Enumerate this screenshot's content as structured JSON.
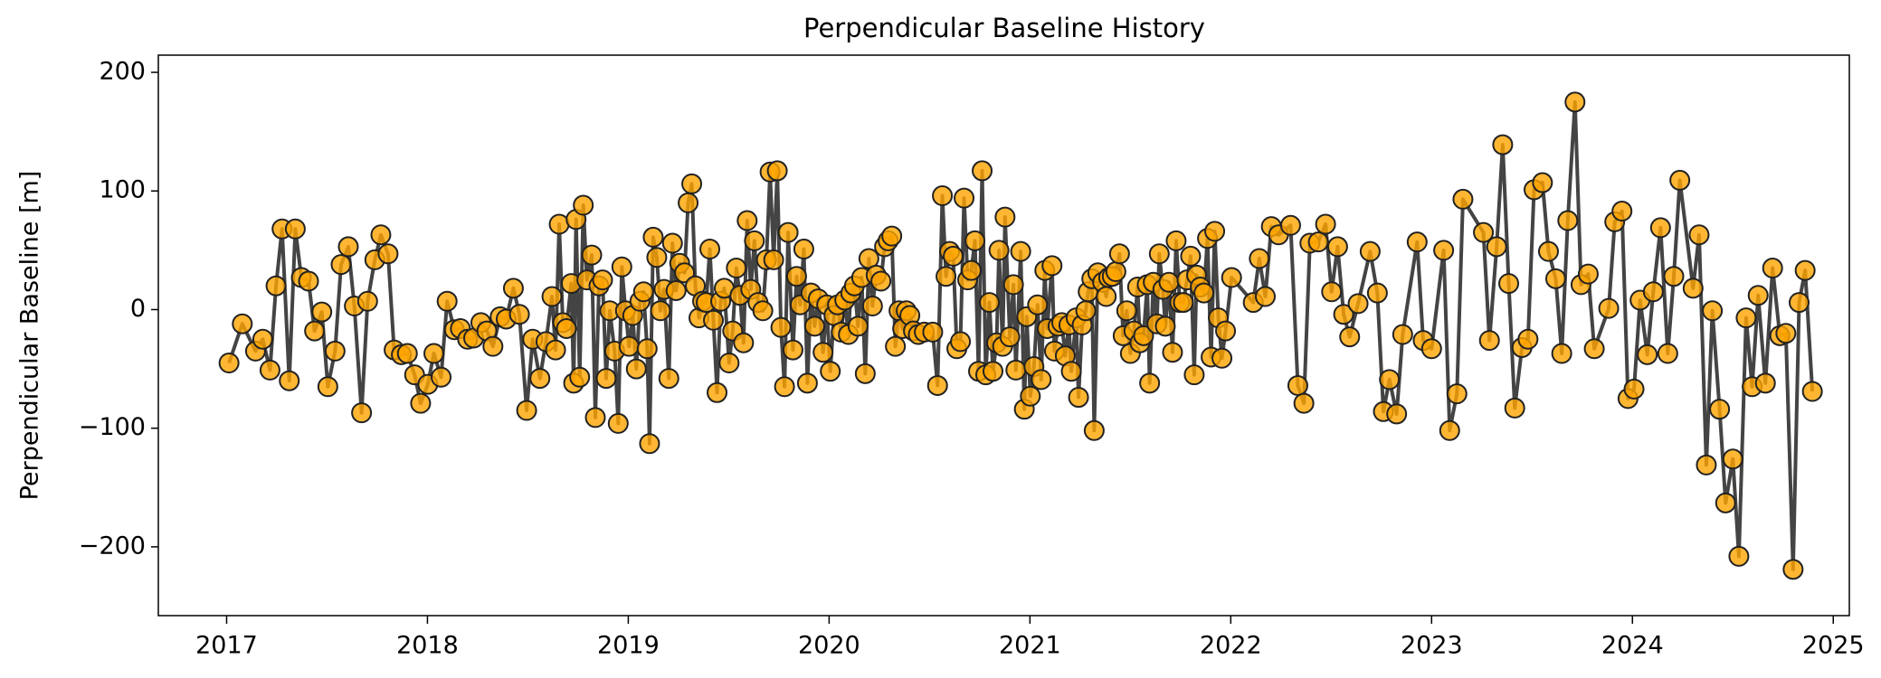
{
  "chart_data": {
    "type": "line",
    "title": "Perpendicular Baseline History",
    "y_label": "Perpendicular Baseline [m]",
    "x": [
      2017.012,
      2017.078,
      2017.144,
      2017.18,
      2017.216,
      2017.246,
      2017.276,
      2017.312,
      2017.342,
      2017.372,
      2017.408,
      2017.438,
      2017.474,
      2017.504,
      2017.54,
      2017.57,
      2017.606,
      2017.636,
      2017.672,
      2017.702,
      2017.738,
      2017.768,
      2017.804,
      2017.834,
      2017.87,
      2017.9,
      2017.936,
      2017.966,
      2018.002,
      2018.032,
      2018.068,
      2018.098,
      2018.134,
      2018.164,
      2018.2,
      2018.23,
      2018.266,
      2018.296,
      2018.326,
      2018.362,
      2018.392,
      2018.428,
      2018.458,
      2018.494,
      2018.524,
      2018.56,
      2018.59,
      2018.62,
      2018.638,
      2018.656,
      2018.674,
      2018.692,
      2018.716,
      2018.728,
      2018.74,
      2018.758,
      2018.776,
      2018.794,
      2018.818,
      2018.836,
      2018.854,
      2018.872,
      2018.89,
      2018.908,
      2018.932,
      2018.95,
      2018.968,
      2018.986,
      2019.004,
      2019.022,
      2019.04,
      2019.058,
      2019.076,
      2019.094,
      2019.106,
      2019.124,
      2019.142,
      2019.16,
      2019.178,
      2019.202,
      2019.22,
      2019.238,
      2019.256,
      2019.28,
      2019.298,
      2019.316,
      2019.334,
      2019.352,
      2019.37,
      2019.388,
      2019.406,
      2019.424,
      2019.442,
      2019.46,
      2019.478,
      2019.502,
      2019.52,
      2019.538,
      2019.556,
      2019.574,
      2019.592,
      2019.61,
      2019.628,
      2019.646,
      2019.67,
      2019.688,
      2019.706,
      2019.724,
      2019.742,
      2019.76,
      2019.778,
      2019.796,
      2019.82,
      2019.838,
      2019.856,
      2019.874,
      2019.892,
      2019.91,
      2019.928,
      2019.946,
      2019.97,
      2019.988,
      2020.006,
      2020.024,
      2020.042,
      2020.06,
      2020.078,
      2020.096,
      2020.108,
      2020.126,
      2020.144,
      2020.162,
      2020.18,
      2020.198,
      2020.216,
      2020.234,
      2020.258,
      2020.276,
      2020.294,
      2020.312,
      2020.33,
      2020.348,
      2020.366,
      2020.384,
      2020.402,
      2020.42,
      2020.444,
      2020.474,
      2020.516,
      2020.54,
      2020.564,
      2020.582,
      2020.6,
      2020.618,
      2020.636,
      2020.654,
      2020.672,
      2020.69,
      2020.708,
      2020.726,
      2020.744,
      2020.762,
      2020.78,
      2020.798,
      2020.816,
      2020.834,
      2020.846,
      2020.864,
      2020.876,
      2020.9,
      2020.918,
      2020.93,
      2020.954,
      2020.972,
      2020.984,
      2021.002,
      2021.02,
      2021.038,
      2021.056,
      2021.074,
      2021.086,
      2021.11,
      2021.122,
      2021.14,
      2021.158,
      2021.176,
      2021.194,
      2021.206,
      2021.23,
      2021.242,
      2021.26,
      2021.278,
      2021.29,
      2021.308,
      2021.32,
      2021.338,
      2021.362,
      2021.38,
      2021.392,
      2021.41,
      2021.428,
      2021.446,
      2021.464,
      2021.482,
      2021.5,
      2021.518,
      2021.536,
      2021.548,
      2021.566,
      2021.584,
      2021.596,
      2021.614,
      2021.632,
      2021.644,
      2021.662,
      2021.674,
      2021.692,
      2021.71,
      2021.728,
      2021.746,
      2021.764,
      2021.782,
      2021.8,
      2021.818,
      2021.83,
      2021.848,
      2021.866,
      2021.884,
      2021.902,
      2021.92,
      2021.938,
      2021.956,
      2021.974,
      2022.004,
      2022.112,
      2022.142,
      2022.172,
      2022.202,
      2022.238,
      2022.298,
      2022.334,
      2022.364,
      2022.394,
      2022.436,
      2022.472,
      2022.502,
      2022.532,
      2022.562,
      2022.592,
      2022.634,
      2022.694,
      2022.73,
      2022.76,
      2022.79,
      2022.826,
      2022.856,
      2022.928,
      2022.958,
      2023.0,
      2023.06,
      2023.09,
      2023.126,
      2023.156,
      2023.258,
      2023.288,
      2023.324,
      2023.354,
      2023.384,
      2023.414,
      2023.45,
      2023.48,
      2023.51,
      2023.552,
      2023.582,
      2023.618,
      2023.648,
      2023.678,
      2023.714,
      2023.744,
      2023.78,
      2023.81,
      2023.882,
      2023.912,
      2023.948,
      2023.978,
      2024.008,
      2024.038,
      2024.074,
      2024.104,
      2024.14,
      2024.176,
      2024.206,
      2024.236,
      2024.302,
      2024.332,
      2024.368,
      2024.398,
      2024.434,
      2024.464,
      2024.5,
      2024.53,
      2024.566,
      2024.596,
      2024.626,
      2024.662,
      2024.698,
      2024.734,
      2024.764,
      2024.8,
      2024.83,
      2024.86,
      2024.896
    ],
    "series": [
      {
        "color": "#444444",
        "marker_color": "#ffa500",
        "values": [
          -45,
          -12,
          -35,
          -25,
          -51,
          20,
          68,
          -60,
          68,
          27,
          24,
          -18,
          -2,
          -65,
          -35,
          38,
          53,
          3,
          -87,
          7,
          42,
          63,
          47,
          -34,
          -38,
          -37,
          -55,
          -79,
          -63,
          -37,
          -57,
          7,
          -17,
          -16,
          -25,
          -24,
          -11,
          -18,
          -31,
          -6,
          -8,
          18,
          -4,
          -85,
          -25,
          -58,
          -27,
          11,
          -34,
          72,
          -11,
          -16,
          22,
          -62,
          76,
          -57,
          88,
          25,
          46,
          -91,
          20,
          25,
          -58,
          -1,
          -35,
          -96,
          36,
          -1,
          -31,
          -5,
          -50,
          7,
          15,
          -33,
          -113,
          61,
          44,
          -1,
          17,
          -58,
          56,
          16,
          39,
          31,
          90,
          106,
          20,
          -7,
          7,
          6,
          51,
          -9,
          -70,
          7,
          18,
          -45,
          -18,
          35,
          12,
          -28,
          75,
          17,
          58,
          6,
          -1,
          42,
          116,
          42,
          117,
          -15,
          -65,
          65,
          -34,
          28,
          4,
          51,
          -62,
          14,
          -14,
          9,
          -36,
          4,
          -52,
          -5,
          4,
          -19,
          8,
          -21,
          14,
          20,
          -14,
          27,
          -54,
          43,
          3,
          29,
          24,
          53,
          58,
          62,
          -31,
          -1,
          -16,
          -1,
          -5,
          -18,
          -21,
          -19,
          -19,
          -64,
          96,
          28,
          49,
          45,
          -33,
          -27,
          94,
          25,
          33,
          58,
          -52,
          117,
          -55,
          6,
          -52,
          -28,
          50,
          -31,
          78,
          -23,
          21,
          -51,
          49,
          -84,
          -6,
          -73,
          -48,
          4,
          -59,
          33,
          -16,
          37,
          -35,
          -14,
          -11,
          -39,
          -13,
          -52,
          -7,
          -74,
          -13,
          -1,
          15,
          26,
          -102,
          31,
          23,
          11,
          27,
          28,
          32,
          47,
          -22,
          -1,
          -37,
          -18,
          19,
          -28,
          -22,
          21,
          -62,
          23,
          -12,
          47,
          17,
          -14,
          23,
          -36,
          58,
          6,
          6,
          25,
          45,
          -55,
          29,
          19,
          14,
          60,
          -40,
          66,
          -7,
          -41,
          -18,
          27,
          6,
          43,
          11,
          70,
          63,
          71,
          -64,
          -79,
          56,
          57,
          72,
          15,
          53,
          -4,
          -23,
          5,
          49,
          14,
          -86,
          -59,
          -88,
          -21,
          57,
          -26,
          -33,
          50,
          -102,
          -71,
          93,
          65,
          -26,
          53,
          139,
          22,
          -83,
          -32,
          -25,
          101,
          107,
          49,
          26,
          -37,
          75,
          175,
          21,
          30,
          -33,
          1,
          74,
          83,
          -75,
          -67,
          8,
          -38,
          15,
          69,
          -37,
          28,
          109,
          18,
          63,
          -131,
          -1,
          -84,
          -163,
          -126,
          -208,
          -7,
          -65,
          12,
          -62,
          35,
          -22,
          -20,
          -219,
          6,
          33,
          -69
        ]
      }
    ],
    "xlim": [
      2016.66,
      2025.08
    ],
    "xticks": [
      2017,
      2018,
      2019,
      2020,
      2021,
      2022,
      2023,
      2024,
      2025
    ],
    "ylim": [
      -258,
      214.5
    ],
    "yticks": [
      -200,
      -100,
      0,
      100,
      200
    ],
    "y_tick_labels": [
      "−200",
      "−100",
      "0",
      "100",
      "200"
    ]
  }
}
